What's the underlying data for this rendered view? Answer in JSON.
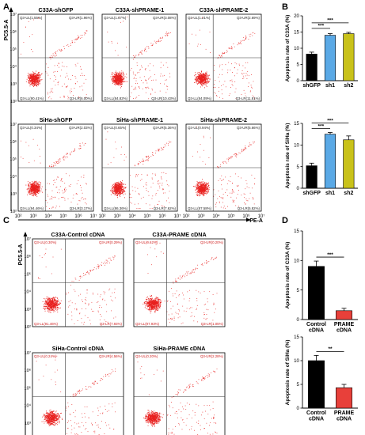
{
  "panels": {
    "A": {
      "letter": "A",
      "y_axis_label": "PC5.5-A",
      "x_axis_label": "PE-A",
      "plots": [
        {
          "title": "C33A-shGFP",
          "ul": "Q3-UL(1.55%)",
          "ur": "Q3-UR(1.96%)",
          "ll": "Q3-LL(90.41%)",
          "lr": "Q3-LR(6.00%)"
        },
        {
          "title": "C33A-shPRAME-1",
          "ul": "Q3-UL(1.67%)",
          "ur": "Q3-UR(3.08%)",
          "ll": "Q3-LL(84.82%)",
          "lr": "Q3-LR(10.43%)"
        },
        {
          "title": "C33A-shPRAME-2",
          "ul": "Q3-UL(1.21%)",
          "ur": "Q3-UR(2.69%)",
          "ll": "Q3-LL(84.09%)",
          "lr": "Q3-LR(11.81%)"
        },
        {
          "title": "SiHa-shGFP",
          "ul": "Q3-UL(0.34%)",
          "ur": "Q3-UR(2.03%)",
          "ll": "Q3-LL(94.46%)",
          "lr": "Q3-LR(3.17%)"
        },
        {
          "title": "SiHa-shPRAME-1",
          "ul": "Q3-UL(0.65%)",
          "ur": "Q3-UR(5.36%)",
          "ll": "Q3-LL(86.36%)",
          "lr": "Q3-LR(7.62%)"
        },
        {
          "title": "SiHa-shPRAME-2",
          "ul": "Q3-UL(0.94%)",
          "ur": "Q3-UR(5.66%)",
          "ll": "Q3-LL(87.58%)",
          "lr": "Q3-LR(5.82%)"
        }
      ],
      "x_ticks": [
        "10²",
        "10³",
        "10⁴",
        "10⁵",
        "10⁶",
        "10⁷"
      ],
      "y_ticks": [
        "10²",
        "10³",
        "10⁴",
        "10⁵",
        "10⁶",
        "10⁷"
      ]
    },
    "C": {
      "letter": "C",
      "y_axis_label": "PC5.5-A",
      "x_axis_label": "PE-A",
      "plots": [
        {
          "title": "C33A-Control cDNA",
          "ul": "Q3-UL(0.30%)",
          "ur": "Q3-UR(0.29%)",
          "ll": "Q3-LL(91.46%)",
          "lr": "Q3-LR(7.93%)"
        },
        {
          "title": "C33A-PRAME cDNA",
          "ul": "Q3-UL(0.62%)",
          "ur": "Q3-UR(0.20%)",
          "ll": "Q3-LL(97.93%)",
          "lr": "Q3-LR(1.05%)"
        },
        {
          "title": "SiHa-Control cDNA",
          "ul": "Q3-UL(0.24%)",
          "ur": "Q3-UR(4.56%)",
          "ll": "Q3-LL(89.73%)",
          "lr": "Q3-LR(5.47%)"
        },
        {
          "title": "SiHa-PRAME cDNA",
          "ul": "Q3-UL(0.20%)",
          "ur": "Q3-UR(2.28%)",
          "ll": "Q3-LL(95.13%)",
          "lr": "Q3-LR(2.39%)"
        }
      ],
      "x_ticks": [
        "10²",
        "10³",
        "10⁴",
        "10⁵",
        "10⁶",
        "10⁷"
      ],
      "y_ticks": [
        "10²",
        "10³",
        "10⁴",
        "10⁵",
        "10⁶",
        "10⁷"
      ]
    },
    "B": {
      "letter": "B"
    },
    "D": {
      "letter": "D"
    }
  },
  "colors": {
    "dots": "#e8201e",
    "black_bar": "#000000",
    "blue_bar": "#5aa9e6",
    "olive_bar": "#c9c21a",
    "red_bar": "#e8403a"
  },
  "chart_data": [
    {
      "panel": "B",
      "type": "bar",
      "categories": [
        "shGFP",
        "sh1",
        "sh2"
      ],
      "values": [
        8.2,
        14.0,
        14.5
      ],
      "errors": [
        0.6,
        0.5,
        0.4
      ],
      "ylabel": "Apoptosis rate of C33A (%)",
      "ylim": [
        0,
        20
      ],
      "yticks": [
        "0",
        "5",
        "10",
        "15",
        "20"
      ],
      "significance": [
        "***",
        "***"
      ],
      "colors": [
        "#000000",
        "#5aa9e6",
        "#c9c21a"
      ]
    },
    {
      "panel": "B",
      "type": "bar",
      "categories": [
        "shGFP",
        "sh1",
        "sh2"
      ],
      "values": [
        5.2,
        12.5,
        11.2
      ],
      "errors": [
        0.6,
        0.4,
        0.9
      ],
      "ylabel": "Apoptosis rate of SiHa (%)",
      "ylim": [
        0,
        15
      ],
      "yticks": [
        "0",
        "5",
        "10",
        "15"
      ],
      "significance": [
        "***",
        "***"
      ],
      "colors": [
        "#000000",
        "#5aa9e6",
        "#c9c21a"
      ]
    },
    {
      "panel": "D",
      "type": "bar",
      "categories": [
        "Control\ncDNA",
        "PRAME\ncDNA"
      ],
      "values": [
        9.0,
        1.5
      ],
      "errors": [
        0.9,
        0.4
      ],
      "ylabel": "Apoptosis rate of C33A (%)",
      "ylim": [
        0,
        15
      ],
      "yticks": [
        "0",
        "5",
        "10",
        "15"
      ],
      "significance": [
        "***"
      ],
      "colors": [
        "#000000",
        "#e8403a"
      ]
    },
    {
      "panel": "D",
      "type": "bar",
      "categories": [
        "Control\ncDNA",
        "PRAME\ncDNA"
      ],
      "values": [
        10.0,
        4.3
      ],
      "errors": [
        1.1,
        0.7
      ],
      "ylabel": "Apoptosis rate of SiHa (%)",
      "ylim": [
        0,
        15
      ],
      "yticks": [
        "0",
        "5",
        "10",
        "15"
      ],
      "significance": [
        "**"
      ],
      "colors": [
        "#000000",
        "#e8403a"
      ]
    }
  ]
}
